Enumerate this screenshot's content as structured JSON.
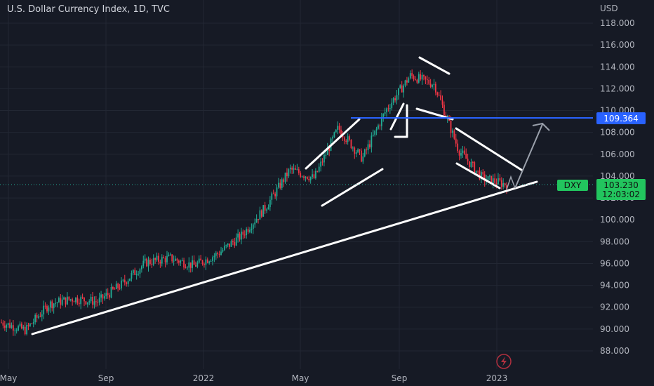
{
  "chart_data": {
    "type": "candlestick",
    "title": "U.S. Dollar Currency Index, 1D, TVC",
    "currency_label": "USD",
    "y_ticks": [
      "118.000",
      "116.000",
      "114.000",
      "112.000",
      "110.000",
      "108.000",
      "106.000",
      "104.000",
      "102.000",
      "100.000",
      "98.000",
      "96.000",
      "94.000",
      "92.000",
      "90.000",
      "88.000"
    ],
    "x_ticks": [
      "May",
      "Sep",
      "2022",
      "May",
      "Sep",
      "2023"
    ],
    "ylim": [
      87.5,
      118.8
    ],
    "grid": true,
    "series": [
      {
        "values": [
          {
            "x": "2021-05",
            "y": 90.6
          },
          {
            "x": "2021-06",
            "y": 89.9
          },
          {
            "x": "2021-07",
            "y": 92.3
          },
          {
            "x": "2021-08",
            "y": 92.8
          },
          {
            "x": "2021-09",
            "y": 92.5
          },
          {
            "x": "2021-10",
            "y": 94.1
          },
          {
            "x": "2021-11",
            "y": 96.1
          },
          {
            "x": "2021-12",
            "y": 96.5
          },
          {
            "x": "2022-01",
            "y": 95.8
          },
          {
            "x": "2022-02",
            "y": 96.9
          },
          {
            "x": "2022-03",
            "y": 98.6
          },
          {
            "x": "2022-04",
            "y": 101.2
          },
          {
            "x": "2022-05",
            "y": 104.6
          },
          {
            "x": "2022-06",
            "y": 103.8
          },
          {
            "x": "2022-07",
            "y": 108.4
          },
          {
            "x": "2022-08",
            "y": 105.6
          },
          {
            "x": "2022-09",
            "y": 110.1
          },
          {
            "x": "2022-10",
            "y": 113.2
          },
          {
            "x": "2022-11",
            "y": 112.4
          },
          {
            "x": "2022-12",
            "y": 106.4
          },
          {
            "x": "2023-01",
            "y": 103.8
          },
          {
            "x": "2023-01",
            "y": 103.23
          }
        ]
      }
    ],
    "horizontal_level": {
      "value": 109.364,
      "label": "109.364",
      "color": "#2962ff"
    },
    "current_price": {
      "symbol": "DXY",
      "value": "103.230",
      "countdown": "12:03:02",
      "color": "#22ab94"
    },
    "colors": {
      "up": "#22ab94",
      "down": "#f23645",
      "background": "#161a25",
      "annotation": "#ffffff",
      "projection": "#9aa0ab"
    }
  }
}
